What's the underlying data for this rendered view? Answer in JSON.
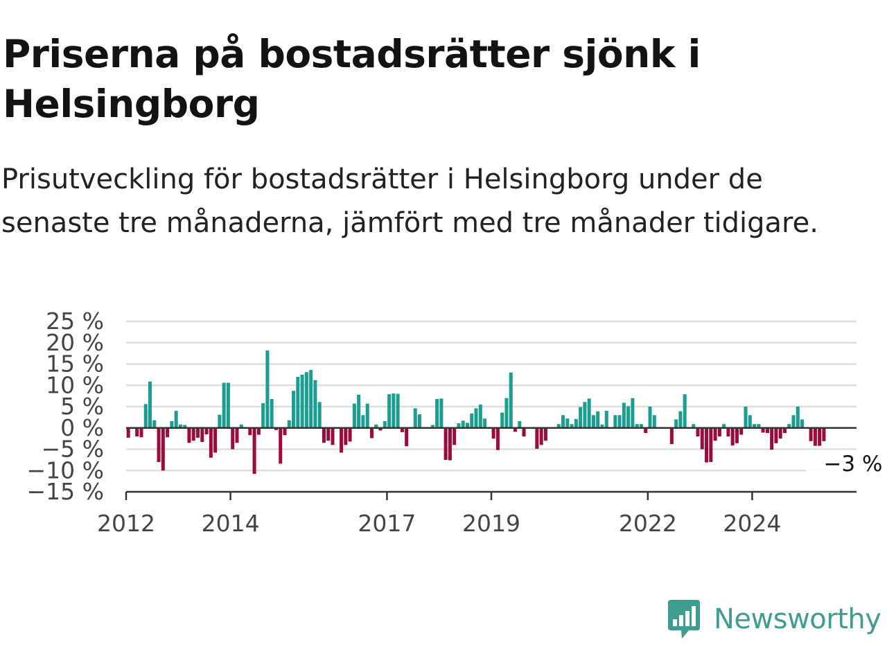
{
  "header": {
    "title": "Priserna på bostadsrätter sjönk i Helsingborg",
    "subtitle": "Prisutveckling för bostadsrätter i Helsingborg under de senaste tre månaderna, jämfört med tre månader tidigare."
  },
  "brand": {
    "name": "Newsworthy",
    "color": "#3f9c91",
    "icon": "newsworthy-bar-chart-icon"
  },
  "colors": {
    "positive": "#1a9e90",
    "negative": "#9b0b3c",
    "grid": "#dddddd",
    "zero_line": "#333333"
  },
  "chart_data": {
    "type": "bar",
    "x_start": "2012-01",
    "x_end": "2025-12",
    "ylim": [
      -15,
      25
    ],
    "yticks": [
      {
        "value": 25,
        "label": "25 %"
      },
      {
        "value": 20,
        "label": "20 %"
      },
      {
        "value": 15,
        "label": "15 %"
      },
      {
        "value": 10,
        "label": "10 %"
      },
      {
        "value": 5,
        "label": "5 %"
      },
      {
        "value": 0,
        "label": "0 %"
      },
      {
        "value": -5,
        "label": "−5 %"
      },
      {
        "value": -10,
        "label": "−10 %"
      },
      {
        "value": -15,
        "label": "−15 %"
      }
    ],
    "xticks": [
      {
        "date": "2012-01",
        "label": "2012"
      },
      {
        "date": "2014-01",
        "label": "2014"
      },
      {
        "date": "2017-01",
        "label": "2017"
      },
      {
        "date": "2019-01",
        "label": "2019"
      },
      {
        "date": "2022-01",
        "label": "2022"
      },
      {
        "date": "2024-01",
        "label": "2024"
      }
    ],
    "grid": true,
    "legend": "none",
    "last_value_label": "−3 %",
    "series": [
      {
        "start": "2012-01",
        "values": [
          -2.3,
          -0.2,
          -2,
          -2.2,
          5.6,
          10.9,
          1.8,
          -8,
          -10,
          -2.2,
          1.6,
          4,
          0.8,
          0.7,
          -3.5,
          -3,
          -2.3,
          -3.3,
          -1.5,
          -7,
          -5.8,
          3.1,
          10.6,
          10.6,
          -5,
          -3.5,
          0.8,
          0,
          -1.7,
          -10.8,
          -1.6,
          5.8,
          18.2,
          6.8,
          -0.5,
          -8.4,
          -1.7,
          1.8,
          8.7,
          12,
          12.5,
          13.1,
          13.6,
          11.2,
          6.1,
          -3.5,
          -3,
          -4,
          0,
          -5.8,
          -4,
          -3.2,
          5.7,
          7.8,
          3,
          5.7,
          -2.4,
          0.8,
          -0.6,
          1.6,
          7.9,
          8.1,
          8,
          -1,
          -4.3,
          0,
          4.6,
          3.2,
          0,
          0,
          0.7,
          6.8,
          6.9,
          -7.5,
          -7.6,
          -4,
          1.1,
          1.7,
          1.2,
          3.4,
          4.6,
          5.5,
          2.2,
          0,
          -2.5,
          -5.2,
          3.6,
          7,
          13,
          -0.9,
          1.6,
          -2,
          0,
          0,
          -4.9,
          -4,
          -3,
          0,
          0,
          0.9,
          3,
          2.2,
          0.9,
          2.1,
          4.9,
          6.1,
          6.9,
          3,
          3.9,
          0.8,
          4,
          0,
          3,
          3,
          5.9,
          5.1,
          7,
          0.9,
          0.9,
          -1.2,
          5,
          3,
          0,
          0,
          0,
          -3.8,
          2,
          3.9,
          7.9,
          0,
          0.9,
          -2,
          -5,
          -8.1,
          -8,
          -3,
          -2,
          0.9,
          -2,
          -4.1,
          -3.6,
          -1.6,
          5,
          3,
          0.9,
          0.9,
          -1.1,
          -1.2,
          -5.1,
          -3.6,
          -2.5,
          -1.2,
          0.9,
          3,
          5,
          2,
          0,
          -3.1,
          -4.2,
          -4.2,
          -3.1
        ]
      }
    ]
  }
}
